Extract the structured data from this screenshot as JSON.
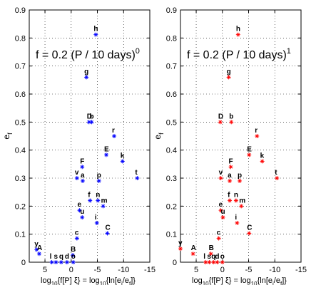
{
  "chart_data": [
    {
      "type": "scatter",
      "color": "#0000ff",
      "annotation": {
        "base": "f = 0.2 (P / 10 days)",
        "exponent": "0"
      },
      "xlabel": {
        "main": "log",
        "sub1": "10",
        "mid": "{f[P] ξ} = log",
        "sub2": "10",
        "end": "{ln[e",
        "sub3": "i",
        "slash": "/e",
        "sub4": "f",
        "close": "]}"
      },
      "ylabel": {
        "main": "e",
        "sub": "f"
      },
      "xlim": [
        8,
        -15
      ],
      "x_reversed": true,
      "ylim": [
        0,
        0.9
      ],
      "grid": true,
      "xticks": [
        5,
        0,
        -5,
        -10,
        -15
      ],
      "yticks": [
        0,
        0.1,
        0.2,
        0.3,
        0.4,
        0.5,
        0.6,
        0.7,
        0.8,
        0.9
      ],
      "points": [
        {
          "label": "h",
          "x": -4.7,
          "y": 0.812
        },
        {
          "label": "g",
          "x": -2.9,
          "y": 0.66
        },
        {
          "label": "D",
          "x": -3.4,
          "y": 0.5
        },
        {
          "label": "b",
          "x": -3.9,
          "y": 0.5
        },
        {
          "label": "r",
          "x": -8.2,
          "y": 0.45
        },
        {
          "label": "E",
          "x": -6.7,
          "y": 0.383
        },
        {
          "label": "k",
          "x": -9.8,
          "y": 0.36
        },
        {
          "label": "F",
          "x": -2.1,
          "y": 0.34
        },
        {
          "label": "v",
          "x": -1.1,
          "y": 0.3
        },
        {
          "label": "a",
          "x": -2.2,
          "y": 0.29
        },
        {
          "label": "p",
          "x": -5.3,
          "y": 0.29
        },
        {
          "label": "t",
          "x": -12.6,
          "y": 0.3
        },
        {
          "label": "f",
          "x": -3.6,
          "y": 0.22
        },
        {
          "label": "n",
          "x": -5.1,
          "y": 0.22
        },
        {
          "label": "m",
          "x": -6.1,
          "y": 0.2
        },
        {
          "label": "e",
          "x": -1.6,
          "y": 0.185
        },
        {
          "label": "u",
          "x": -2.1,
          "y": 0.16
        },
        {
          "label": "i",
          "x": -4.9,
          "y": 0.14
        },
        {
          "label": "C",
          "x": -6.9,
          "y": 0.103
        },
        {
          "label": "c",
          "x": -1.1,
          "y": 0.085
        },
        {
          "label": "B",
          "x": -0.3,
          "y": 0.025
        },
        {
          "label": "y",
          "x": 6.6,
          "y": 0.045
        },
        {
          "label": "A",
          "x": 6.1,
          "y": 0.03
        },
        {
          "label": "l",
          "x": 3.7,
          "y": 0.0
        },
        {
          "label": "s",
          "x": 2.9,
          "y": 0.0
        },
        {
          "label": "q",
          "x": 1.9,
          "y": 0.0
        },
        {
          "label": "d",
          "x": 0.8,
          "y": 0.0
        },
        {
          "label": "o",
          "x": -0.4,
          "y": 0.0
        }
      ]
    },
    {
      "type": "scatter",
      "color": "#ff0000",
      "annotation": {
        "base": "f = 0.2 (P / 10 days)",
        "exponent": "1"
      },
      "xlabel": {
        "main": "log",
        "sub1": "10",
        "mid": "{f[P] ξ} = log",
        "sub2": "10",
        "end": "{ln[e",
        "sub3": "i",
        "slash": "/e",
        "sub4": "f",
        "close": "]}"
      },
      "ylabel": {
        "main": "e",
        "sub": "f"
      },
      "xlim": [
        8,
        -15
      ],
      "x_reversed": true,
      "ylim": [
        0,
        0.9
      ],
      "grid": true,
      "xticks": [
        5,
        0,
        -5,
        -10,
        -15
      ],
      "yticks": [
        0,
        0.1,
        0.2,
        0.3,
        0.4,
        0.5,
        0.6,
        0.7,
        0.8,
        0.9
      ],
      "points": [
        {
          "label": "h",
          "x": -3.0,
          "y": 0.812
        },
        {
          "label": "g",
          "x": -1.2,
          "y": 0.66
        },
        {
          "label": "D",
          "x": 0.4,
          "y": 0.5
        },
        {
          "label": "b",
          "x": -1.7,
          "y": 0.5
        },
        {
          "label": "r",
          "x": -6.6,
          "y": 0.45
        },
        {
          "label": "E",
          "x": -5.1,
          "y": 0.383
        },
        {
          "label": "k",
          "x": -7.6,
          "y": 0.36
        },
        {
          "label": "F",
          "x": -1.6,
          "y": 0.34
        },
        {
          "label": "v",
          "x": 0.3,
          "y": 0.3
        },
        {
          "label": "a",
          "x": -1.4,
          "y": 0.29
        },
        {
          "label": "p",
          "x": -3.3,
          "y": 0.29
        },
        {
          "label": "t",
          "x": -10.4,
          "y": 0.3
        },
        {
          "label": "f",
          "x": -1.4,
          "y": 0.22
        },
        {
          "label": "n",
          "x": -2.6,
          "y": 0.22
        },
        {
          "label": "m",
          "x": -3.6,
          "y": 0.2
        },
        {
          "label": "e",
          "x": 0.3,
          "y": 0.185
        },
        {
          "label": "u",
          "x": -0.1,
          "y": 0.16
        },
        {
          "label": "i",
          "x": -2.8,
          "y": 0.14
        },
        {
          "label": "C",
          "x": -5.1,
          "y": 0.103
        },
        {
          "label": "c",
          "x": 0.7,
          "y": 0.085
        },
        {
          "label": "B",
          "x": 2.2,
          "y": 0.03
        },
        {
          "label": "y",
          "x": 8.0,
          "y": 0.048
        },
        {
          "label": "A",
          "x": 5.6,
          "y": 0.03
        },
        {
          "label": "l",
          "x": 3.2,
          "y": 0.0
        },
        {
          "label": "s",
          "x": 2.5,
          "y": 0.0
        },
        {
          "label": "q",
          "x": 1.7,
          "y": 0.0
        },
        {
          "label": "d",
          "x": 1.0,
          "y": 0.0
        },
        {
          "label": "o",
          "x": 0.0,
          "y": 0.0
        }
      ]
    }
  ]
}
